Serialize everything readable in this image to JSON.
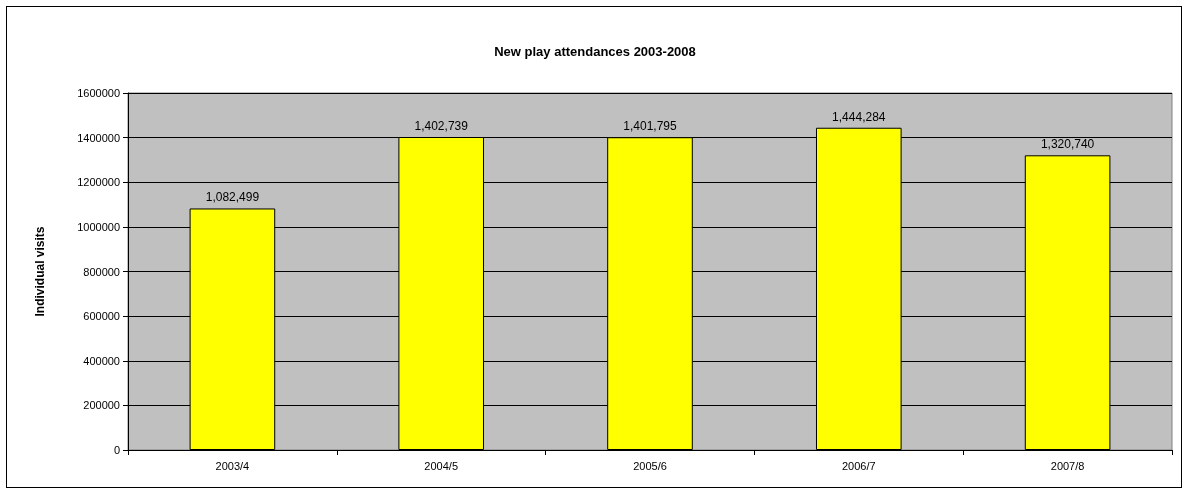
{
  "chart_data": {
    "type": "bar",
    "title": "New play attendances 2003-2008",
    "ylabel": "Individual visits",
    "categories": [
      "2003/4",
      "2004/5",
      "2005/6",
      "2006/7",
      "2007/8"
    ],
    "values": [
      1082499,
      1402739,
      1401795,
      1444284,
      1320740
    ],
    "value_labels": [
      "1,082,499",
      "1,402,739",
      "1,401,795",
      "1,444,284",
      "1,320,740"
    ],
    "color": "#ffff00",
    "ylim": [
      0,
      1600000
    ],
    "yticks": [
      0,
      200000,
      400000,
      600000,
      800000,
      1000000,
      1200000,
      1400000,
      1600000
    ],
    "grid": "y"
  }
}
